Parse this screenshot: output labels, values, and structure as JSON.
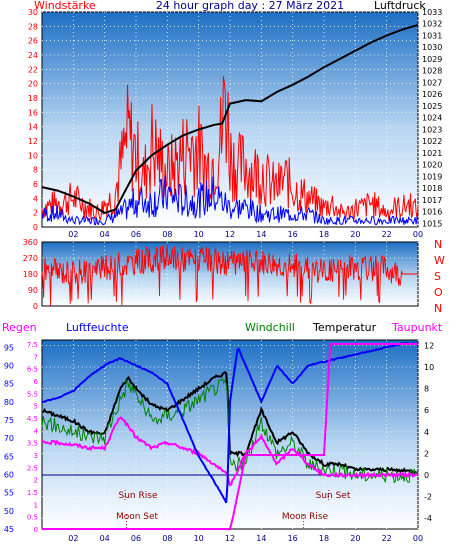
{
  "title": "24 hour graph day : 27 März 2021",
  "colors": {
    "red": "#ff0000",
    "blue": "#0000ff",
    "green": "#008000",
    "black": "#000000",
    "magenta": "#ff00ff",
    "navy": "#00008b"
  },
  "chart_data": [
    {
      "type": "line",
      "name": "wind-and-pressure",
      "left_label": "Windstärke",
      "right_label": "Luftdruck",
      "x_ticks": [
        "02",
        "04",
        "06",
        "08",
        "10",
        "12",
        "14",
        "16",
        "18",
        "20",
        "22",
        "00"
      ],
      "left_ticks": [
        0,
        2,
        4,
        6,
        8,
        10,
        12,
        14,
        16,
        18,
        20,
        22,
        24,
        26,
        28,
        30
      ],
      "right_ticks": [
        1015,
        1016,
        1017,
        1018,
        1019,
        1020,
        1021,
        1022,
        1023,
        1024,
        1025,
        1026,
        1027,
        1028,
        1029,
        1030,
        1031,
        1032,
        1033
      ],
      "ylim_left": [
        0,
        30
      ],
      "ylim_right": [
        1014.7,
        1033
      ],
      "series": [
        {
          "label": "Luftdruck",
          "color": "#000000",
          "axis": "right",
          "x": [
            0,
            1,
            2,
            3,
            4,
            4.7,
            5.2,
            6,
            7,
            8,
            9,
            10,
            11,
            11.5,
            12,
            13,
            14,
            15,
            16,
            17,
            18,
            19,
            20,
            21,
            22,
            23,
            24
          ],
          "y": [
            1018.1,
            1017.8,
            1017.3,
            1016.7,
            1015.9,
            1016.2,
            1017.5,
            1019.5,
            1020.8,
            1021.7,
            1022.5,
            1023,
            1023.4,
            1023.5,
            1025.2,
            1025.5,
            1025.4,
            1026.2,
            1026.8,
            1027.5,
            1028.3,
            1029,
            1029.7,
            1030.4,
            1031,
            1031.5,
            1031.9
          ]
        },
        {
          "label": "Windspitzen",
          "color": "#ff0000",
          "axis": "left",
          "x": [
            0,
            1,
            2,
            3,
            3.7,
            4,
            4.6,
            5,
            5.5,
            6,
            6.5,
            7,
            7.5,
            8,
            8.5,
            9,
            9.5,
            10,
            10.5,
            11,
            11.5,
            11.7,
            12,
            12.5,
            13,
            13.5,
            14,
            14.5,
            15,
            15.5,
            16,
            16.5,
            17,
            17.5,
            18,
            18.5,
            19,
            19.5,
            20,
            20.5,
            21,
            21.5,
            22,
            22.5,
            23,
            23.5,
            24
          ],
          "y": [
            4,
            5,
            6,
            4,
            3,
            5,
            6,
            12,
            19,
            15,
            10,
            17,
            14,
            11,
            13,
            15,
            17,
            16,
            12,
            14,
            19,
            29,
            15,
            12,
            13,
            11,
            12,
            9,
            8,
            10,
            8,
            7,
            6,
            5,
            4,
            5,
            3,
            3,
            4,
            4,
            5,
            4,
            3,
            4,
            4,
            5,
            3
          ]
        },
        {
          "label": "Windmittel",
          "color": "#0000ff",
          "axis": "left",
          "x": [
            0,
            1,
            2,
            3,
            4,
            5,
            6,
            7,
            8,
            9,
            10,
            11,
            12,
            13,
            14,
            15,
            16,
            17,
            18,
            19,
            20,
            21,
            22,
            23,
            24
          ],
          "y": [
            2,
            2,
            1,
            1,
            1,
            2,
            4,
            4,
            5,
            4,
            4,
            5,
            3,
            3,
            2,
            2,
            2,
            2,
            1,
            1,
            1,
            1,
            1,
            1,
            1
          ]
        }
      ]
    },
    {
      "type": "line",
      "name": "wind-direction",
      "left_ticks": [
        0,
        90,
        180,
        270,
        360
      ],
      "right_ticks": [
        "N",
        "W",
        "S",
        "O",
        "N"
      ],
      "ylim": [
        0,
        360
      ],
      "series": [
        {
          "label": "Windrichtung",
          "color": "#ff0000",
          "x": [
            0,
            2,
            4,
            6,
            8,
            10,
            12,
            14,
            16,
            18,
            20,
            22,
            23,
            24
          ],
          "y": [
            200,
            190,
            210,
            250,
            270,
            260,
            240,
            250,
            230,
            200,
            220,
            210,
            180,
            180
          ]
        }
      ]
    },
    {
      "type": "line",
      "name": "humidity-temperature",
      "header_labels": [
        "Regen",
        "Luftfeuchte",
        "Windchill",
        "Temperatur",
        "Taupunkt"
      ],
      "x_ticks": [
        "02",
        "04",
        "06",
        "08",
        "10",
        "12",
        "14",
        "16",
        "18",
        "20",
        "22",
        "00"
      ],
      "regen_ticks": [
        0,
        0.5,
        1,
        1.5,
        2,
        2.5,
        3,
        3.5,
        4,
        4.5,
        5,
        5.5,
        6,
        6.5,
        7,
        7.5
      ],
      "feuchte_ticks": [
        45,
        50,
        55,
        60,
        65,
        70,
        75,
        80,
        85,
        90,
        95
      ],
      "temp_ticks": [
        -4,
        -2,
        0,
        2,
        4,
        6,
        8,
        10,
        12
      ],
      "ylim_temp": [
        -5,
        12.5
      ],
      "ylim_feuchte": [
        45,
        97
      ],
      "annotations": [
        "Sun Rise",
        "Sun Set",
        "Moon Set",
        "Moon Rise"
      ],
      "series": [
        {
          "label": "Temperatur",
          "color": "#000000",
          "axis": "temp",
          "x": [
            0,
            1,
            2,
            3,
            4,
            5,
            5.5,
            6,
            7,
            8,
            9,
            10,
            11,
            11.8,
            12,
            13,
            14,
            15,
            16,
            17,
            18,
            19,
            20,
            21,
            22,
            23,
            24
          ],
          "y": [
            6,
            5.5,
            5,
            4,
            3.8,
            8,
            9,
            8,
            6.5,
            6,
            7,
            8,
            9,
            9.5,
            2,
            2,
            6,
            3,
            4,
            2,
            1,
            1,
            0.5,
            0.5,
            0.5,
            0.4,
            0.3
          ]
        },
        {
          "label": "Windchill",
          "color": "#008000",
          "axis": "temp",
          "x": [
            0,
            1,
            2,
            3,
            4,
            5,
            5.5,
            6,
            7,
            8,
            9,
            10,
            11,
            11.8,
            12,
            13,
            14,
            15,
            16,
            17,
            18,
            19,
            20,
            21,
            22,
            23,
            24
          ],
          "y": [
            5,
            4.5,
            4,
            3.5,
            3.5,
            7,
            8.5,
            7.5,
            5,
            5.5,
            6,
            7,
            8,
            8.5,
            1,
            1,
            5,
            2,
            3,
            1,
            0.5,
            0.5,
            0,
            0,
            0,
            0,
            0
          ]
        },
        {
          "label": "Taupunkt",
          "color": "#ff00ff",
          "axis": "temp",
          "x": [
            0,
            1,
            2,
            3,
            4,
            5,
            6,
            7,
            8,
            9,
            10,
            11,
            11.8,
            12,
            13,
            14,
            15,
            16,
            17,
            18,
            19,
            20,
            21,
            22,
            23,
            24
          ],
          "y": [
            3,
            3,
            2.8,
            2.5,
            2.5,
            5.5,
            3.5,
            2.5,
            3,
            2.5,
            2,
            1,
            0,
            -1,
            2,
            3.5,
            1,
            2.5,
            1,
            0,
            0,
            0,
            0,
            0,
            0,
            0
          ]
        },
        {
          "label": "Luftfeuchte",
          "color": "#0000ff",
          "axis": "feuchte",
          "x": [
            0,
            1,
            2,
            3,
            4,
            5,
            6,
            7,
            8,
            9,
            10,
            11,
            11.8,
            12,
            12.5,
            13,
            14,
            15,
            16,
            17,
            18,
            19,
            20,
            21,
            22,
            23,
            24
          ],
          "y": [
            80,
            81,
            83,
            87,
            90,
            92,
            90,
            88,
            85,
            75,
            65,
            58,
            52,
            80,
            95,
            90,
            80,
            90,
            85,
            90,
            91,
            92,
            93,
            94,
            95,
            96,
            96
          ]
        },
        {
          "label": "Regen",
          "color": "#ff00ff",
          "axis": "regen",
          "x": [
            0,
            12,
            12.2,
            13,
            18,
            18.4,
            19,
            24
          ],
          "y": [
            0,
            0,
            0.5,
            3,
            3,
            7.5,
            7.5,
            7.5
          ]
        }
      ]
    }
  ]
}
